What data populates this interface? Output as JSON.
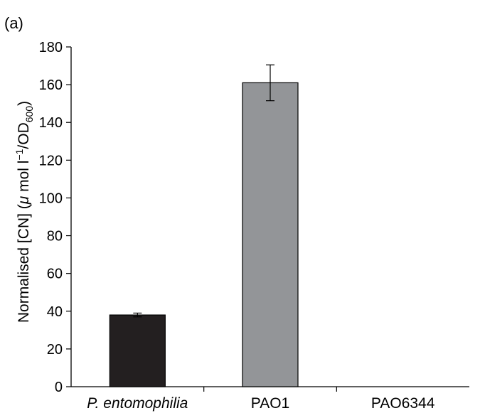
{
  "panel_label": "(a)",
  "chart_data": {
    "type": "bar",
    "title": "",
    "xlabel": "",
    "ylabel_parts": {
      "prefix": "Normalised [CN] (",
      "mu": "μ",
      "mid": " mol l",
      "sup": "−1",
      "after_sup": "/OD",
      "sub": "600",
      "suffix": ")"
    },
    "ylim": [
      0,
      180
    ],
    "yticks": [
      0,
      20,
      40,
      60,
      80,
      100,
      120,
      140,
      160,
      180
    ],
    "categories": [
      "P. entomophilia",
      "PAO1",
      "PAO6344"
    ],
    "category_italic": [
      true,
      false,
      false
    ],
    "values": [
      38,
      161,
      0
    ],
    "errors": [
      1,
      9.5,
      0
    ],
    "bar_colors": [
      "#231f20",
      "#939598",
      "#ffffff"
    ],
    "grid": false,
    "legend": "none"
  }
}
